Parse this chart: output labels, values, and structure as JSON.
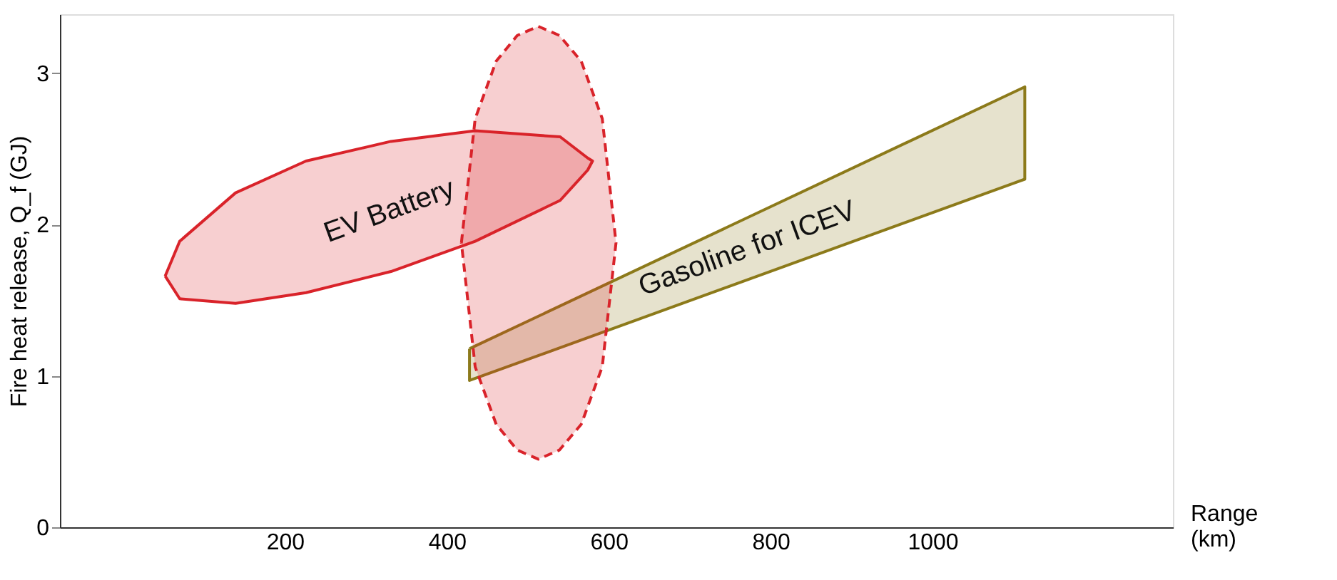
{
  "chart_data": {
    "type": "area",
    "xlabel": "Range (km)",
    "ylabel": "Fire heat release, Q_f (GJ)",
    "xlim": [
      -78,
      1297
    ],
    "ylim": [
      0,
      3.39
    ],
    "xticks": [
      200,
      400,
      600,
      800,
      1000
    ],
    "yticks": [
      0,
      1,
      2,
      3
    ],
    "grid": false,
    "marker": "none",
    "series": [
      {
        "name": "EV Battery",
        "color": "#d9232a",
        "line_style": "solid",
        "x": [
          52,
          70,
          139,
          226,
          331,
          435,
          540,
          574,
          580,
          574,
          540,
          435,
          331,
          226,
          139,
          70,
          52
        ],
        "values": [
          1.66,
          1.89,
          2.21,
          2.42,
          2.55,
          2.62,
          2.58,
          2.44,
          2.42,
          2.36,
          2.16,
          1.89,
          1.69,
          1.55,
          1.48,
          1.51,
          1.66
        ]
      },
      {
        "name": "Gasoline for ICEV",
        "color": "#8c7a1a",
        "line_style": "solid",
        "x": [
          428,
          1114,
          1114,
          428,
          428
        ],
        "values": [
          1.18,
          2.91,
          2.3,
          0.97,
          1.18
        ]
      },
      {
        "color": "#d9232a",
        "line_style": "dashed",
        "x": [
          418,
          435,
          461,
          487,
          513,
          539,
          566,
          592,
          609,
          592,
          566,
          539,
          513,
          487,
          461,
          435,
          418
        ],
        "values": [
          1.88,
          2.7,
          3.08,
          3.25,
          3.31,
          3.25,
          3.08,
          2.7,
          1.88,
          1.06,
          0.68,
          0.51,
          0.45,
          0.51,
          0.68,
          1.06,
          1.88
        ]
      }
    ]
  }
}
